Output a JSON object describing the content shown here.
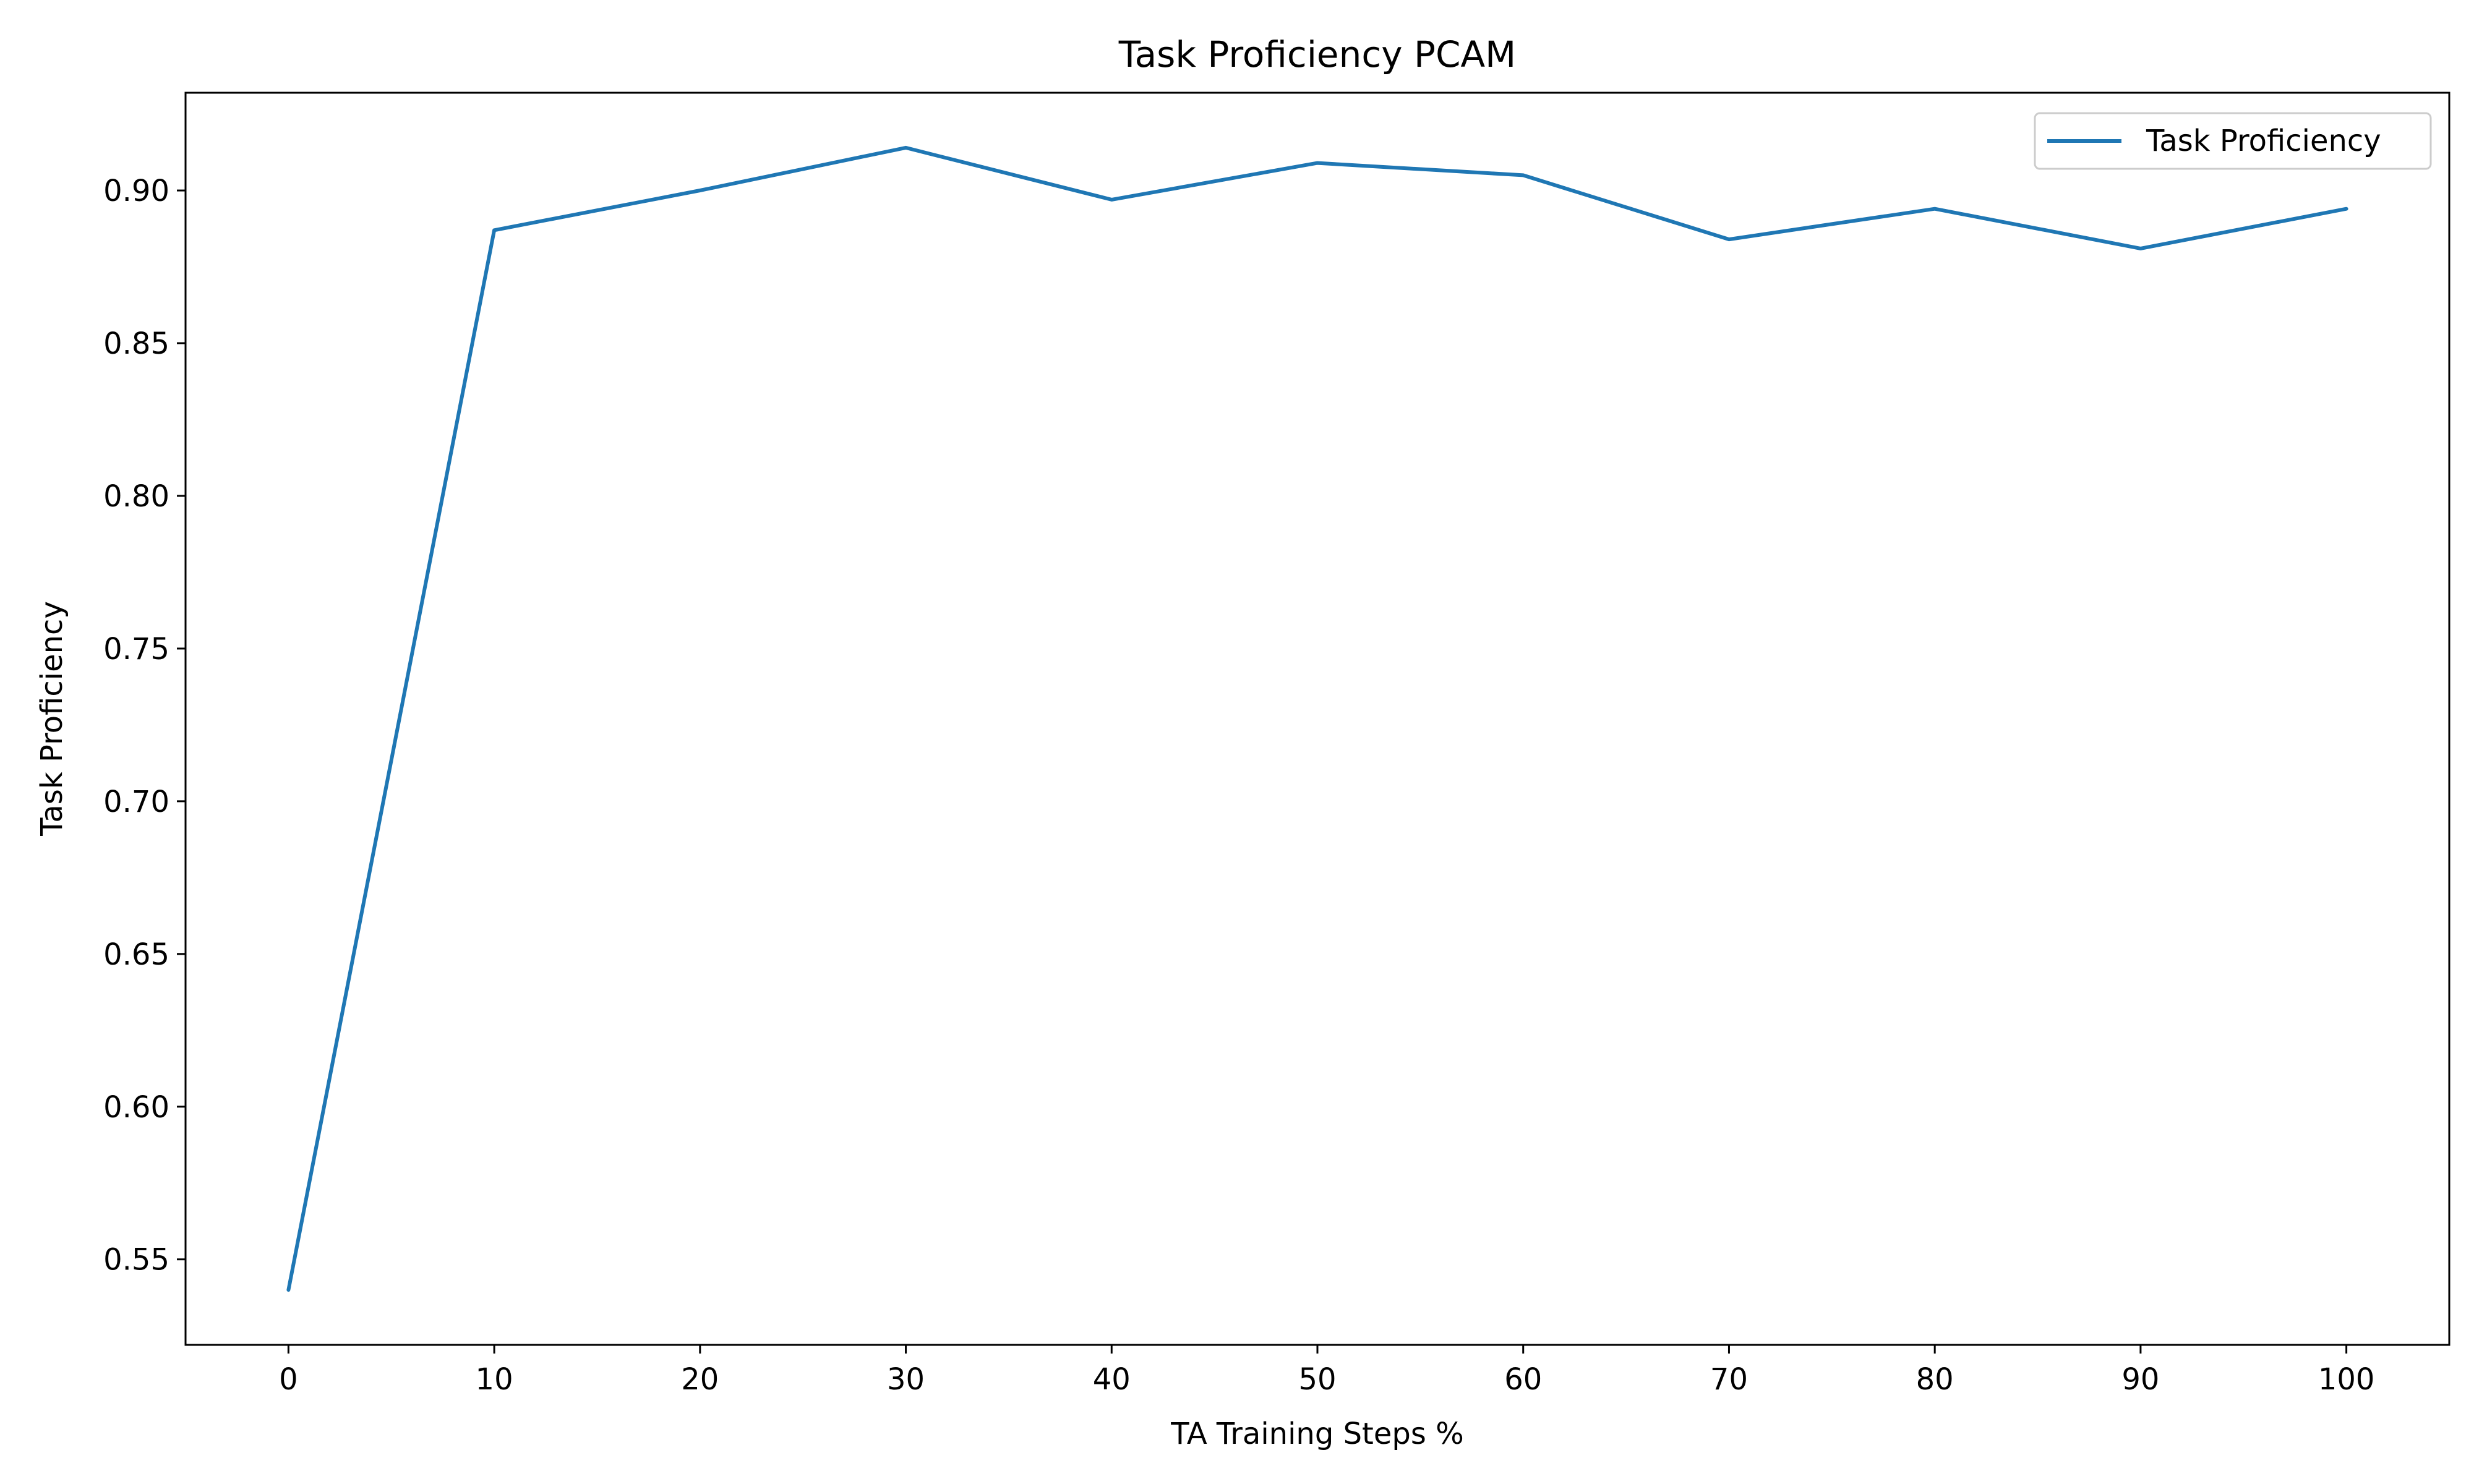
{
  "chart_data": {
    "type": "line",
    "title": "Task Proficiency PCAM",
    "xlabel": "TA Training Steps %",
    "ylabel": "Task Proficiency",
    "xlim": [
      -5,
      105
    ],
    "ylim": [
      0.522,
      0.932
    ],
    "xticks": [
      0,
      10,
      20,
      30,
      40,
      50,
      60,
      70,
      80,
      90,
      100
    ],
    "yticks": [
      0.55,
      0.6,
      0.65,
      0.7,
      0.75,
      0.8,
      0.85,
      0.9
    ],
    "ytick_labels": [
      "0.55",
      "0.60",
      "0.65",
      "0.70",
      "0.75",
      "0.80",
      "0.85",
      "0.90"
    ],
    "grid": false,
    "legend_position": "top-right",
    "series": [
      {
        "name": "Task Proficiency",
        "color": "#1f77b4",
        "x": [
          0,
          10,
          20,
          30,
          40,
          50,
          60,
          70,
          80,
          90,
          100
        ],
        "y": [
          0.54,
          0.887,
          0.9,
          0.914,
          0.897,
          0.909,
          0.905,
          0.884,
          0.894,
          0.881,
          0.894
        ]
      }
    ]
  }
}
